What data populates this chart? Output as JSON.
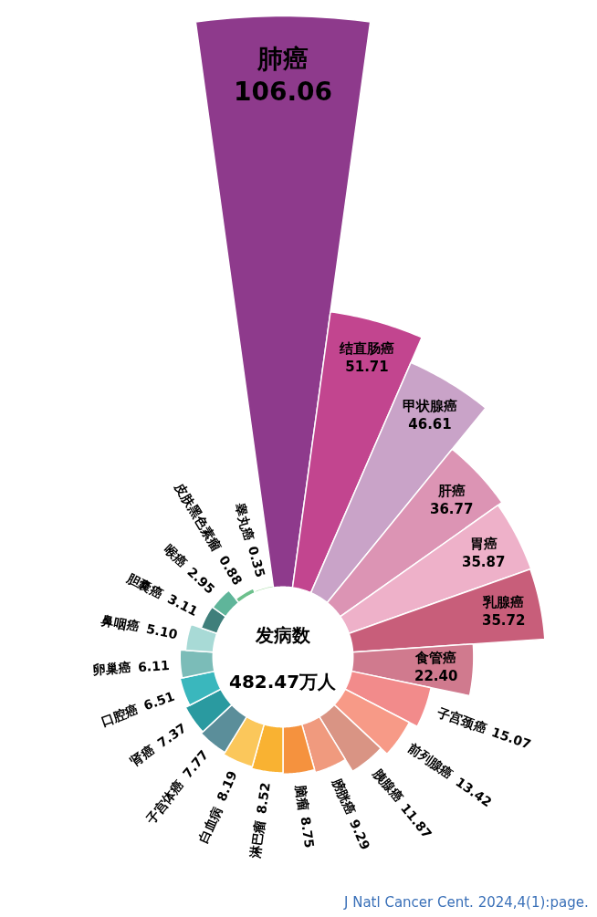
{
  "chart_data": {
    "type": "other",
    "categories": [
      "肺癌",
      "结直肠癌",
      "甲状腺癌",
      "肝癌",
      "胃癌",
      "乳腺癌",
      "食管癌",
      "子宫颈癌",
      "前列腺癌",
      "胰腺癌",
      "膀胱癌",
      "脑瘤",
      "淋巴瘤",
      "白血病",
      "子宫体癌",
      "肾癌",
      "口腔癌",
      "卵巢癌",
      "鼻咽癌",
      "胆囊癌",
      "喉癌",
      "皮肤黑色素瘤",
      "睾丸癌"
    ],
    "values": [
      106.06,
      51.71,
      46.61,
      36.77,
      35.87,
      35.72,
      22.4,
      15.07,
      13.42,
      11.87,
      9.29,
      8.75,
      8.52,
      8.19,
      7.77,
      7.37,
      6.51,
      6.11,
      5.1,
      3.11,
      2.95,
      0.88,
      0.35
    ],
    "value_labels": [
      "106.06",
      "51.71",
      "46.61",
      "36.77",
      "35.87",
      "35.72",
      "22.40",
      "15.07",
      "13.42",
      "11.87",
      "9.29",
      "8.75",
      "8.52",
      "8.19",
      "7.77",
      "7.37",
      "6.51",
      "6.11",
      "5.10",
      "3.11",
      "2.95",
      "0.88",
      "0.35"
    ],
    "colors": [
      "#8e3a8c",
      "#c2458f",
      "#c9a3c8",
      "#dc94b4",
      "#eeb1c9",
      "#c85e7a",
      "#d07a8e",
      "#f28b8b",
      "#f79a87",
      "#d99484",
      "#f09a7e",
      "#f5923e",
      "#f9b232",
      "#fbc75b",
      "#5b8e9a",
      "#2a9aa0",
      "#3ab7bd",
      "#7bbcb8",
      "#a8dad6",
      "#3f7f7b",
      "#5fb59a",
      "#6cc08c",
      "#a8dca8"
    ],
    "annotations": [
      "发病数",
      "482.47万人",
      "J Natl Cancer Cent. 2024,4(1):page."
    ]
  }
}
